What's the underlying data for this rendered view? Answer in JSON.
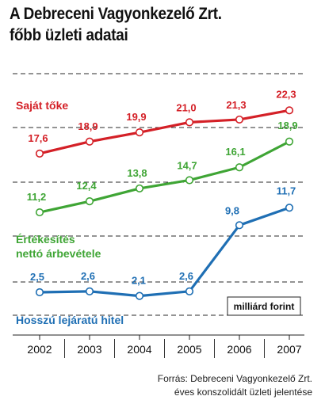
{
  "header": {
    "title_line1": "A Debreceni Vagyonkezelő Zrt.",
    "title_line2": "főbb üzleti adatai"
  },
  "source": {
    "line1": "Forrás: Debreceni Vagyonkezelő Zrt.",
    "line2": "éves konszolidált üzleti jelentése"
  },
  "chart_data": {
    "type": "line",
    "x": [
      "2002",
      "2003",
      "2004",
      "2005",
      "2006",
      "2007"
    ],
    "unit_label": "milliárd forint",
    "grid": "horizontal dashed",
    "ylim": [
      0,
      24
    ],
    "series": [
      {
        "name": "Saját tőke",
        "color": "#d42027",
        "values": [
          17.6,
          18.9,
          19.9,
          21.0,
          21.3,
          22.3
        ],
        "labels": [
          "17,6",
          "18,9",
          "19,9",
          "21,0",
          "21,3",
          "22,3"
        ]
      },
      {
        "name": "Értékesítés nettó árbevétele",
        "name_line1": "Értékesítés",
        "name_line2": "nettó árbevétele",
        "color": "#3fa535",
        "values": [
          11.2,
          12.4,
          13.8,
          14.7,
          16.1,
          18.9
        ],
        "labels": [
          "11,2",
          "12,4",
          "13,8",
          "14,7",
          "16,1",
          "18,9"
        ]
      },
      {
        "name": "Hosszú lejáratú hitel",
        "color": "#1f6fb4",
        "values": [
          2.5,
          2.6,
          2.1,
          2.6,
          9.8,
          11.7
        ],
        "labels": [
          "2,5",
          "2,6",
          "2,1",
          "2,6",
          "9,8",
          "11,7"
        ]
      }
    ]
  }
}
